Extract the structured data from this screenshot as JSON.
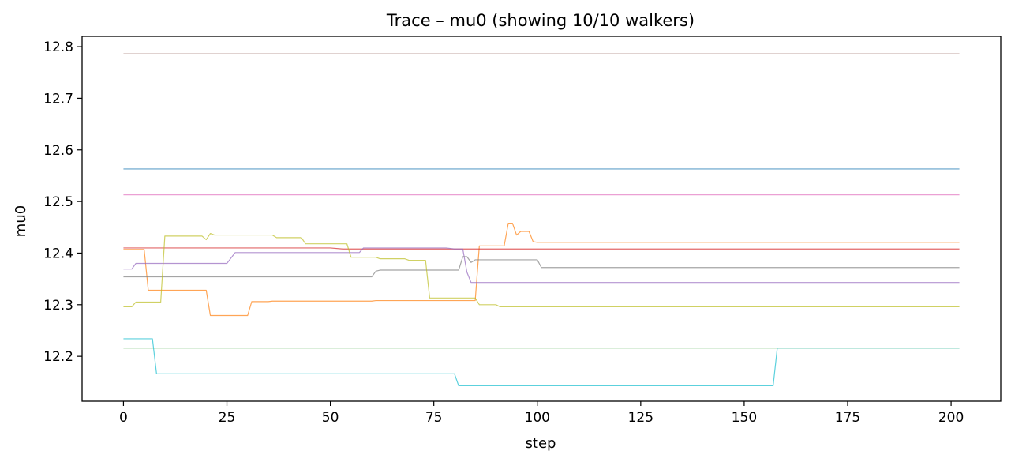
{
  "chart_data": {
    "type": "line",
    "title": "Trace – mu0 (showing 10/10 walkers)",
    "xlabel": "step",
    "ylabel": "mu0",
    "xlim": [
      -10,
      212
    ],
    "ylim": [
      12.113,
      12.82
    ],
    "x_ticks": [
      0,
      25,
      50,
      75,
      100,
      125,
      150,
      175,
      200
    ],
    "y_ticks": [
      12.2,
      12.3,
      12.4,
      12.5,
      12.6,
      12.7,
      12.8
    ],
    "y_tick_labels": [
      "12.2",
      "12.3",
      "12.4",
      "12.5",
      "12.6",
      "12.7",
      "12.8"
    ],
    "grid": false,
    "legend": "none",
    "series": [
      {
        "color": "#1f77b4",
        "points": [
          [
            0,
            12.563
          ],
          [
            202,
            12.563
          ]
        ]
      },
      {
        "color": "#ff7f0e",
        "points": [
          [
            0,
            12.407
          ],
          [
            5,
            12.407
          ],
          [
            6,
            12.328
          ],
          [
            20,
            12.328
          ],
          [
            21,
            12.279
          ],
          [
            30,
            12.279
          ],
          [
            31,
            12.306
          ],
          [
            35,
            12.306
          ],
          [
            36,
            12.307
          ],
          [
            60,
            12.307
          ],
          [
            61,
            12.308
          ],
          [
            84,
            12.308
          ],
          [
            85,
            12.308
          ],
          [
            86,
            12.414
          ],
          [
            92,
            12.414
          ],
          [
            93,
            12.458
          ],
          [
            94,
            12.458
          ],
          [
            95,
            12.435
          ],
          [
            96,
            12.442
          ],
          [
            98,
            12.442
          ],
          [
            99,
            12.422
          ],
          [
            100,
            12.421
          ],
          [
            202,
            12.421
          ]
        ]
      },
      {
        "color": "#2ca02c",
        "points": [
          [
            0,
            12.216
          ],
          [
            202,
            12.216
          ]
        ]
      },
      {
        "color": "#d62728",
        "points": [
          [
            0,
            12.41
          ],
          [
            50,
            12.41
          ],
          [
            53,
            12.408
          ],
          [
            202,
            12.408
          ]
        ]
      },
      {
        "color": "#9467bd",
        "points": [
          [
            0,
            12.369
          ],
          [
            2,
            12.369
          ],
          [
            3,
            12.38
          ],
          [
            25,
            12.38
          ],
          [
            27,
            12.401
          ],
          [
            57,
            12.401
          ],
          [
            58,
            12.41
          ],
          [
            78,
            12.41
          ],
          [
            80,
            12.408
          ],
          [
            82,
            12.408
          ],
          [
            83,
            12.363
          ],
          [
            84,
            12.343
          ],
          [
            202,
            12.343
          ]
        ]
      },
      {
        "color": "#8c564b",
        "points": [
          [
            0,
            12.786
          ],
          [
            202,
            12.786
          ]
        ]
      },
      {
        "color": "#e377c2",
        "points": [
          [
            0,
            12.513
          ],
          [
            202,
            12.513
          ]
        ]
      },
      {
        "color": "#7f7f7f",
        "points": [
          [
            0,
            12.354
          ],
          [
            60,
            12.354
          ],
          [
            61,
            12.365
          ],
          [
            62,
            12.367
          ],
          [
            81,
            12.367
          ],
          [
            82,
            12.393
          ],
          [
            83,
            12.393
          ],
          [
            84,
            12.382
          ],
          [
            85,
            12.387
          ],
          [
            100,
            12.387
          ],
          [
            101,
            12.372
          ],
          [
            202,
            12.372
          ]
        ]
      },
      {
        "color": "#bcbd22",
        "points": [
          [
            0,
            12.296
          ],
          [
            2,
            12.296
          ],
          [
            3,
            12.305
          ],
          [
            9,
            12.305
          ],
          [
            10,
            12.433
          ],
          [
            19,
            12.433
          ],
          [
            20,
            12.426
          ],
          [
            21,
            12.438
          ],
          [
            22,
            12.435
          ],
          [
            36,
            12.435
          ],
          [
            37,
            12.43
          ],
          [
            43,
            12.43
          ],
          [
            44,
            12.418
          ],
          [
            54,
            12.418
          ],
          [
            55,
            12.392
          ],
          [
            61,
            12.392
          ],
          [
            62,
            12.389
          ],
          [
            68,
            12.389
          ],
          [
            69,
            12.386
          ],
          [
            73,
            12.386
          ],
          [
            74,
            12.313
          ],
          [
            85,
            12.313
          ],
          [
            86,
            12.3
          ],
          [
            90,
            12.3
          ],
          [
            91,
            12.296
          ],
          [
            202,
            12.296
          ]
        ]
      },
      {
        "color": "#17becf",
        "points": [
          [
            0,
            12.234
          ],
          [
            7,
            12.234
          ],
          [
            8,
            12.166
          ],
          [
            80,
            12.166
          ],
          [
            81,
            12.143
          ],
          [
            157,
            12.143
          ],
          [
            158,
            12.216
          ],
          [
            202,
            12.216
          ]
        ]
      }
    ]
  }
}
